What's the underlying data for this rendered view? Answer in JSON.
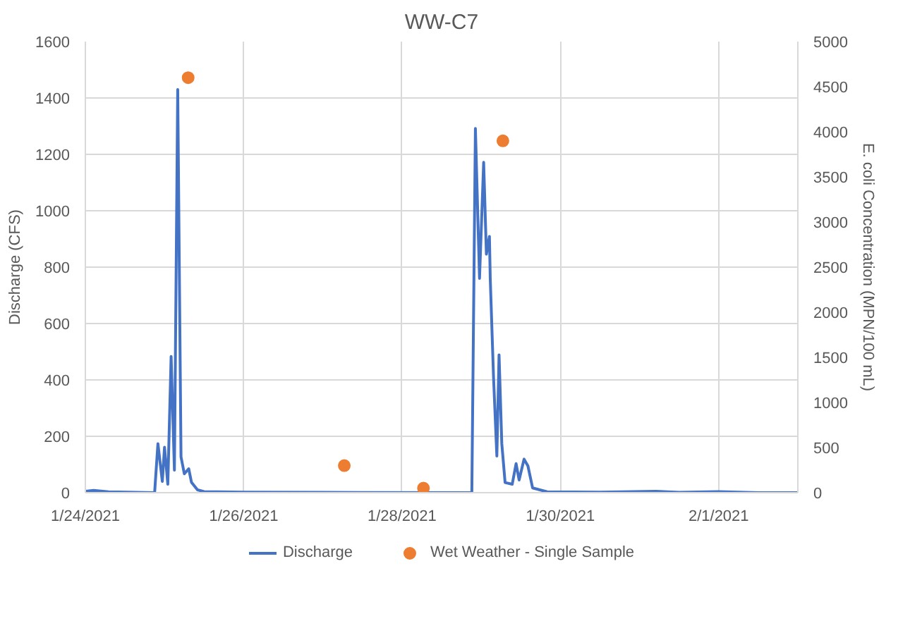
{
  "chart_data": {
    "type": "line",
    "title": "WW-C7",
    "ylabel": "Discharge (CFS)",
    "y2label": "E. coli Concentration (MPN/100 mL)",
    "xlim": [
      "2021-01-24",
      "2021-02-02"
    ],
    "xticks": [
      {
        "value": "2021-01-24",
        "label": "1/24/2021"
      },
      {
        "value": "2021-01-26",
        "label": "1/26/2021"
      },
      {
        "value": "2021-01-28",
        "label": "1/28/2021"
      },
      {
        "value": "2021-01-30",
        "label": "1/30/2021"
      },
      {
        "value": "2021-02-01",
        "label": "2/1/2021"
      }
    ],
    "ylim": [
      0,
      1600
    ],
    "yticks": [
      0,
      200,
      400,
      600,
      800,
      1000,
      1200,
      1400,
      1600
    ],
    "y2lim": [
      0,
      5000
    ],
    "y2ticks": [
      0,
      500,
      1000,
      1500,
      2000,
      2500,
      3000,
      3500,
      4000,
      4500,
      5000
    ],
    "grid": true,
    "legend": "bottom",
    "series": [
      {
        "name": "Discharge",
        "color": "#4472c4",
        "marker": "none",
        "x": [
          "2021-01-24T00:00",
          "2021-01-24T02:30",
          "2021-01-24T07:00",
          "2021-01-24T21:00",
          "2021-01-24T22:00",
          "2021-01-24T23:20",
          "2021-01-25T00:00",
          "2021-01-25T01:00",
          "2021-01-25T02:00",
          "2021-01-25T03:00",
          "2021-01-25T04:00",
          "2021-01-25T05:00",
          "2021-01-25T06:00",
          "2021-01-25T07:20",
          "2021-01-25T08:10",
          "2021-01-25T10:00",
          "2021-01-25T12:00",
          "2021-01-26T00:00",
          "2021-01-27T00:00",
          "2021-01-28T21:10",
          "2021-01-28T22:15",
          "2021-01-28T23:30",
          "2021-01-29T00:45",
          "2021-01-29T01:35",
          "2021-01-29T02:30",
          "2021-01-29T02:45",
          "2021-01-29T03:45",
          "2021-01-29T04:45",
          "2021-01-29T05:25",
          "2021-01-29T06:15",
          "2021-01-29T07:15",
          "2021-01-29T09:25",
          "2021-01-29T10:10",
          "2021-01-29T10:35",
          "2021-01-29T11:30",
          "2021-01-29T13:00",
          "2021-01-29T14:10",
          "2021-01-29T15:35",
          "2021-01-29T20:00",
          "2021-01-30T12:00",
          "2021-01-31T05:00",
          "2021-01-31T12:00",
          "2021-02-01T00:00",
          "2021-02-01T12:00",
          "2021-02-02T00:00"
        ],
        "values": [
          5,
          8,
          3,
          0,
          174,
          40,
          161,
          30,
          483,
          80,
          1430,
          127,
          67,
          85,
          37,
          10,
          4,
          2,
          1,
          0,
          1292,
          760,
          1172,
          846,
          909,
          760,
          408,
          130,
          489,
          174,
          36,
          30,
          77,
          103,
          45,
          119,
          95,
          17,
          3,
          2,
          5,
          1,
          4,
          0,
          0
        ]
      },
      {
        "name": "Wet Weather - Single Sample",
        "type": "scatter",
        "axis": "y2",
        "color": "#ed7d31",
        "marker": "circle",
        "x": [
          "2021-01-25T07:10",
          "2021-01-27T06:30",
          "2021-01-28T06:30",
          "2021-01-29T06:35"
        ],
        "values": [
          4600,
          300,
          50,
          3900
        ]
      }
    ]
  }
}
